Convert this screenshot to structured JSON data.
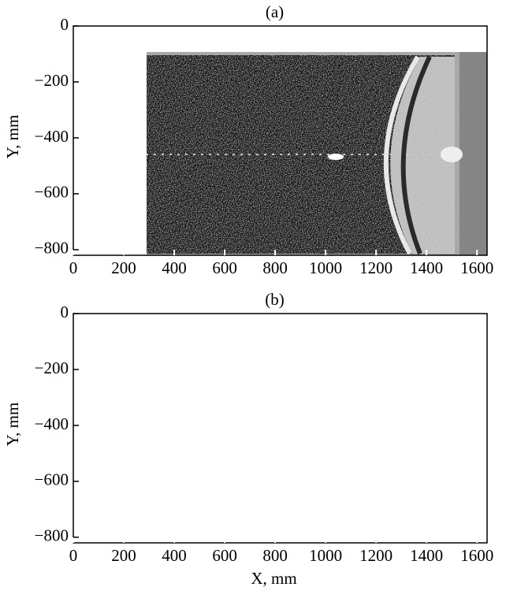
{
  "chart_data": [
    {
      "type": "image",
      "title": "(a)",
      "ylabel": "Y, mm",
      "xlim": [
        0,
        1640
      ],
      "ylim": [
        -820,
        0
      ],
      "xticks": [
        0,
        200,
        400,
        600,
        800,
        1000,
        1200,
        1400,
        1600
      ],
      "yticks": [
        {
          "value": -800,
          "label": "−800"
        },
        {
          "value": -600,
          "label": "−600"
        },
        {
          "value": -400,
          "label": "−400"
        },
        {
          "value": -200,
          "label": "−200"
        },
        0
      ]
    },
    {
      "type": "image",
      "title": "(b)",
      "xlabel": "X, mm",
      "ylabel": "Y, mm",
      "xlim": [
        0,
        1640
      ],
      "ylim": [
        -820,
        0
      ],
      "xticks": [
        0,
        200,
        400,
        600,
        800,
        1000,
        1200,
        1400,
        1600
      ],
      "yticks": [
        {
          "value": -800,
          "label": "−800"
        },
        {
          "value": -600,
          "label": "−600"
        },
        {
          "value": -400,
          "label": "−400"
        },
        {
          "value": -200,
          "label": "−200"
        },
        0
      ]
    }
  ]
}
